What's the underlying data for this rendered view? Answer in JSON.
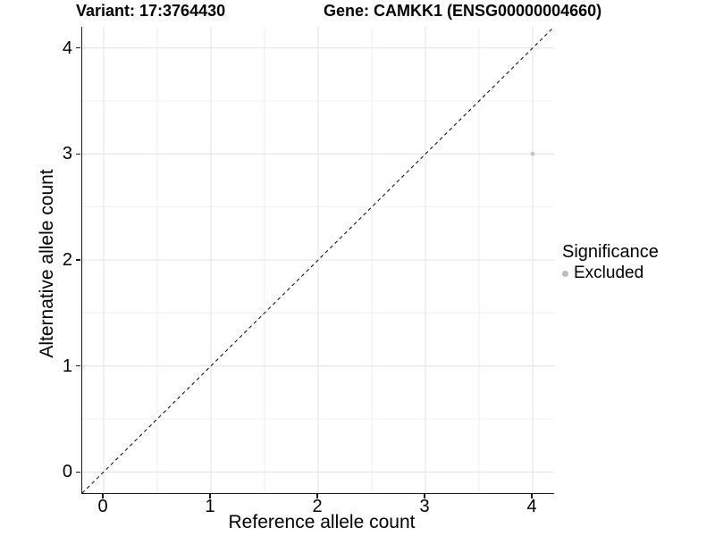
{
  "titles": {
    "variant": "Variant: 17:3764430",
    "gene": "Gene: CAMKK1 (ENSG00000004660)"
  },
  "chart_data": {
    "type": "scatter",
    "title_left": "Variant: 17:3764430",
    "title_right": "Gene: CAMKK1 (ENSG00000004660)",
    "xlabel": "Reference allele count",
    "ylabel": "Alternative allele count",
    "x_ticks": [
      0,
      1,
      2,
      3,
      4
    ],
    "y_ticks": [
      0,
      1,
      2,
      3,
      4
    ],
    "x_minor_ticks": [
      0.5,
      1.5,
      2.5,
      3.5
    ],
    "y_minor_ticks": [
      0.5,
      1.5,
      2.5,
      3.5
    ],
    "xlim": [
      -0.2,
      4.2
    ],
    "ylim": [
      -0.2,
      4.2
    ],
    "grid": "major and minor, light gray on white",
    "identity_line": {
      "style": "dashed",
      "from": [
        -0.2,
        -0.2
      ],
      "to": [
        4.2,
        4.2
      ],
      "color": "#000000"
    },
    "points": [
      {
        "x": 4,
        "y": 3,
        "significance": "Excluded",
        "color": "#c3c3c3"
      }
    ],
    "legend": {
      "title": "Significance",
      "position": "right",
      "items": [
        {
          "label": "Excluded",
          "color": "#bdbdbd"
        }
      ]
    }
  },
  "colors": {
    "background": "#ffffff",
    "grid_major": "#e3e3e3",
    "grid_minor": "#f0f0f0",
    "axis": "#1a1a1a",
    "text": "#000000"
  }
}
